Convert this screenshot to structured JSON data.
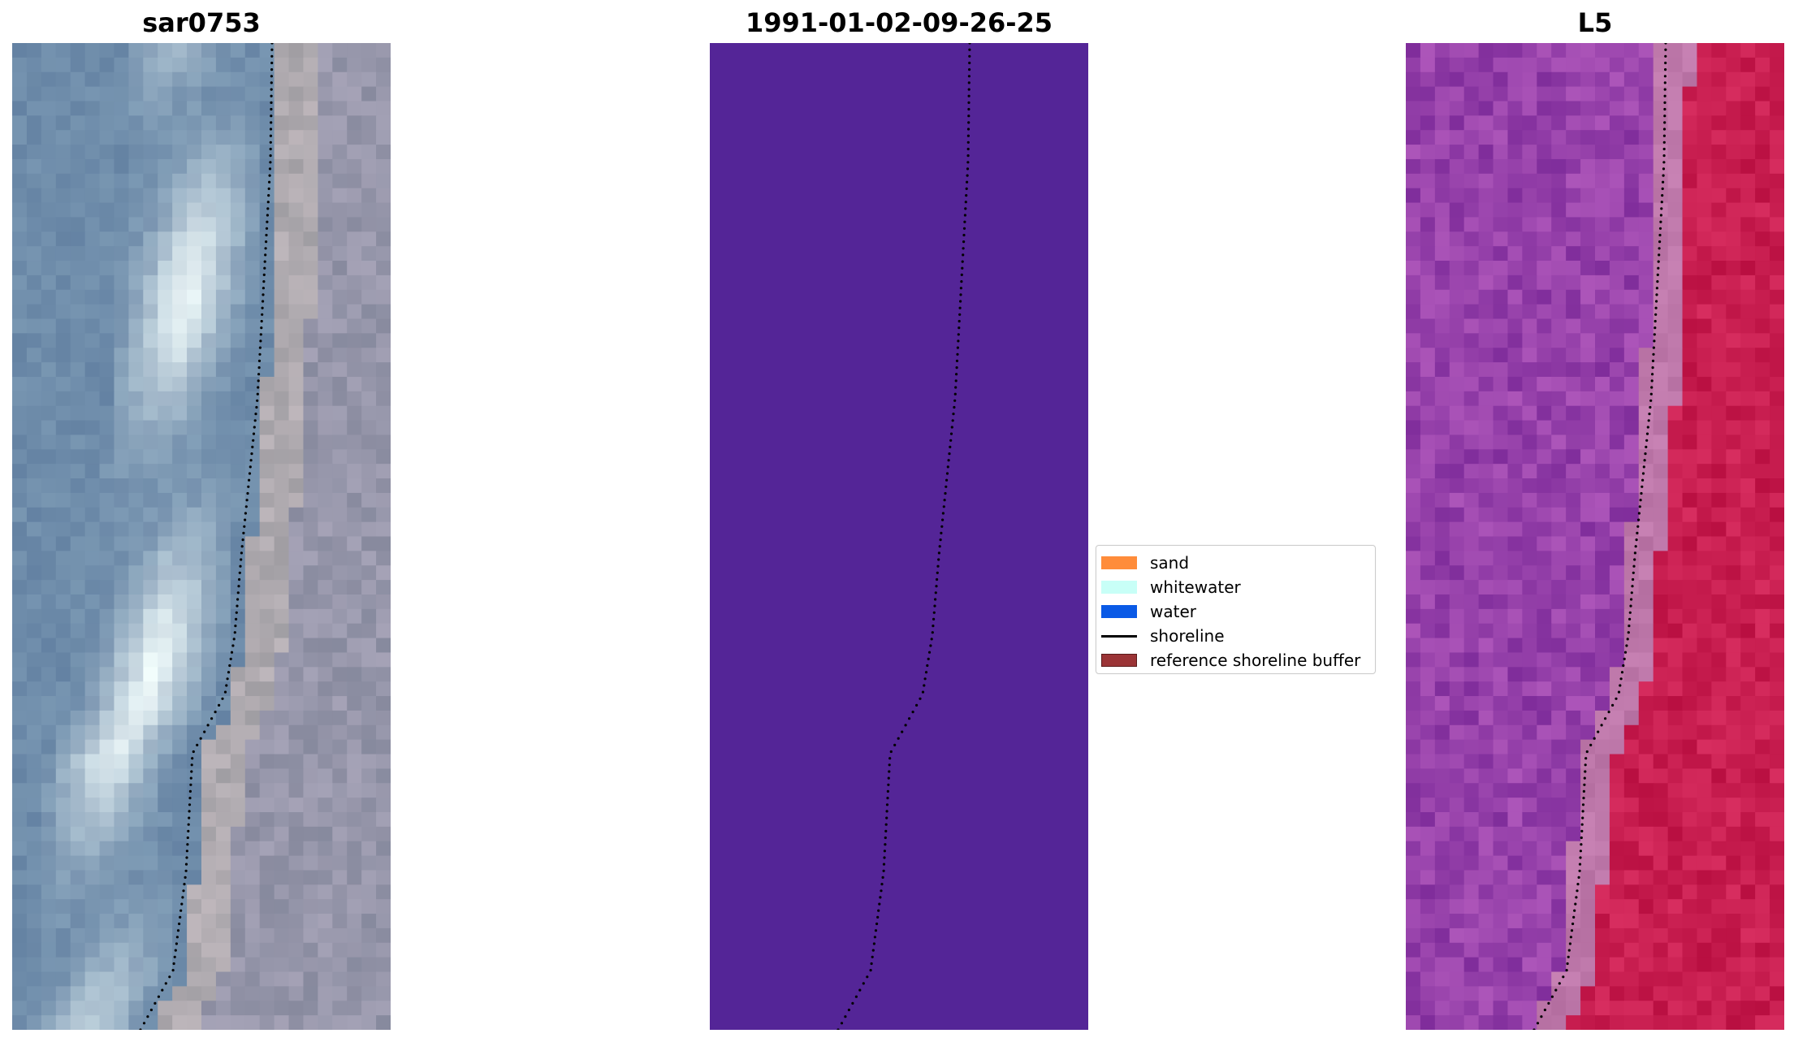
{
  "panels": [
    {
      "title": "sar0753"
    },
    {
      "title": "1991-01-02-09-26-25"
    },
    {
      "title": "L5"
    }
  ],
  "legend": {
    "placement": "center-left of right panel",
    "items": [
      {
        "label": "sand",
        "color": "#ff8c3a"
      },
      {
        "label": "whitewater",
        "color": "#c8fff7"
      },
      {
        "label": "water",
        "color": "#0a5ae6"
      },
      {
        "label": "shoreline",
        "color": "#000000"
      },
      {
        "label": "reference shoreline buffer",
        "color": "#9b3436"
      }
    ]
  },
  "colors": {
    "classification_fill": "#542597",
    "rgb_base": "#7f92ae",
    "falsecolor_purple": "#9a45ab",
    "falsecolor_red": "#c91a4e"
  }
}
